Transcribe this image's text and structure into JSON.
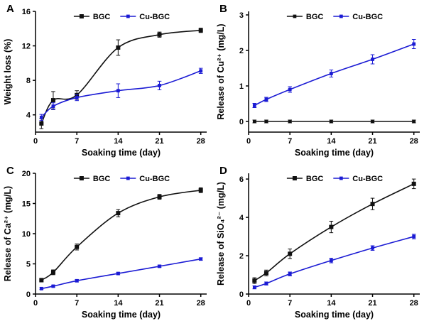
{
  "figure": {
    "background": "#ffffff",
    "xlabel": "Soaking time (day)",
    "legend_labels": [
      "BGC",
      "Cu-BGC"
    ],
    "series_colors": {
      "BGC": "#111111",
      "Cu-BGC": "#1b1bd4"
    }
  },
  "chart_data": [
    {
      "panel": "A",
      "type": "line",
      "xlabel": "Soaking time (day)",
      "ylabel": "Weight loss (%)",
      "xlim": [
        0,
        29
      ],
      "ylim": [
        2,
        16
      ],
      "xticks": [
        0,
        7,
        14,
        21,
        28
      ],
      "yticks": [
        4,
        8,
        12,
        16
      ],
      "x": [
        1,
        3,
        7,
        14,
        21,
        28
      ],
      "grid": false,
      "legend_position": "top-center",
      "series": [
        {
          "name": "BGC",
          "color": "#111111",
          "marker": "square",
          "marker_size": 3,
          "values": [
            3.0,
            5.7,
            6.3,
            11.8,
            13.3,
            13.8
          ],
          "errors": [
            0.6,
            1.0,
            0.5,
            0.9,
            0.3,
            0.25
          ]
        },
        {
          "name": "Cu-BGC",
          "color": "#1b1bd4",
          "marker": "square",
          "marker_size": 2.4,
          "values": [
            3.7,
            5.0,
            6.0,
            6.8,
            7.4,
            9.1
          ],
          "errors": [
            0.35,
            0.4,
            0.35,
            0.8,
            0.5,
            0.3
          ]
        }
      ]
    },
    {
      "panel": "B",
      "type": "line",
      "xlabel": "Soaking time (day)",
      "ylabel": "Release of  Cu²⁺ (mg/L)",
      "xlim": [
        0,
        29
      ],
      "ylim": [
        -0.3,
        3.1
      ],
      "xticks": [
        0,
        7,
        14,
        21,
        28
      ],
      "yticks": [
        0,
        1,
        2,
        3
      ],
      "x": [
        1,
        3,
        7,
        14,
        21,
        28
      ],
      "grid": false,
      "legend_position": "top-center",
      "series": [
        {
          "name": "BGC",
          "color": "#111111",
          "marker": "square",
          "marker_size": 2.4,
          "values": [
            0,
            0,
            0,
            0,
            0,
            0
          ],
          "errors": [
            0.04,
            0.04,
            0.04,
            0.04,
            0.04,
            0.04
          ]
        },
        {
          "name": "Cu-BGC",
          "color": "#1b1bd4",
          "marker": "square",
          "marker_size": 2.4,
          "values": [
            0.45,
            0.62,
            0.9,
            1.35,
            1.75,
            2.18
          ],
          "errors": [
            0.06,
            0.06,
            0.08,
            0.1,
            0.13,
            0.13
          ]
        }
      ]
    },
    {
      "panel": "C",
      "type": "line",
      "xlabel": "Soaking time (day)",
      "ylabel": "Release of Ca²⁺ (mg/L)",
      "xlim": [
        0,
        29
      ],
      "ylim": [
        0,
        20
      ],
      "xticks": [
        0,
        7,
        14,
        21,
        28
      ],
      "yticks": [
        0,
        5,
        10,
        15,
        20
      ],
      "x": [
        1,
        3,
        7,
        14,
        21,
        28
      ],
      "grid": false,
      "legend_position": "top-center",
      "series": [
        {
          "name": "BGC",
          "color": "#111111",
          "marker": "square",
          "marker_size": 3,
          "values": [
            2.3,
            3.6,
            7.8,
            13.4,
            16.1,
            17.2
          ],
          "errors": [
            0.3,
            0.4,
            0.5,
            0.6,
            0.4,
            0.4
          ]
        },
        {
          "name": "Cu-BGC",
          "color": "#1b1bd4",
          "marker": "square",
          "marker_size": 2.4,
          "values": [
            0.9,
            1.3,
            2.2,
            3.4,
            4.6,
            5.8
          ],
          "errors": [
            0.15,
            0.15,
            0.2,
            0.2,
            0.2,
            0.2
          ]
        }
      ]
    },
    {
      "panel": "D",
      "type": "line",
      "xlabel": "Soaking time (day)",
      "ylabel": "Release of  SiO₄²⁻ (mg/L)",
      "xlim": [
        0,
        29
      ],
      "ylim": [
        0,
        6.3
      ],
      "xticks": [
        0,
        7,
        14,
        21,
        28
      ],
      "yticks": [
        0,
        2,
        4,
        6
      ],
      "x": [
        1,
        3,
        7,
        14,
        21,
        28
      ],
      "grid": false,
      "legend_position": "top-center",
      "series": [
        {
          "name": "BGC",
          "color": "#111111",
          "marker": "square",
          "marker_size": 3,
          "values": [
            0.7,
            1.1,
            2.1,
            3.5,
            4.7,
            5.75
          ],
          "errors": [
            0.15,
            0.15,
            0.25,
            0.3,
            0.3,
            0.25
          ]
        },
        {
          "name": "Cu-BGC",
          "color": "#1b1bd4",
          "marker": "square",
          "marker_size": 2.4,
          "values": [
            0.35,
            0.55,
            1.05,
            1.75,
            2.4,
            3.0
          ],
          "errors": [
            0.08,
            0.08,
            0.1,
            0.12,
            0.12,
            0.12
          ]
        }
      ]
    }
  ]
}
